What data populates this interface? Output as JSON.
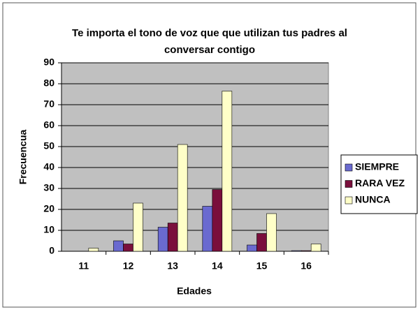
{
  "chart_data": {
    "type": "bar",
    "title": "Te importa el tono de voz que que utilizan tus padres al conversar contigo",
    "x_label": "Edades",
    "y_label": "Frecuencua",
    "categories": [
      "11",
      "12",
      "13",
      "14",
      "15",
      "16"
    ],
    "series": [
      {
        "name": "SIEMPRE",
        "color": "#6a6ad0",
        "values": [
          0,
          5,
          11.5,
          21.5,
          3,
          0.3
        ]
      },
      {
        "name": "RARA VEZ",
        "color": "#7a0f3c",
        "values": [
          0,
          3.5,
          13.5,
          29.5,
          8.5,
          0.3
        ]
      },
      {
        "name": "NUNCA",
        "color": "#ffffc8",
        "values": [
          1.5,
          23,
          51,
          76.5,
          18,
          3.5
        ]
      }
    ],
    "ylim": [
      0,
      90
    ],
    "yticks": [
      0,
      10,
      20,
      30,
      40,
      50,
      60,
      70,
      80,
      90
    ],
    "grid": true,
    "legend": "right"
  }
}
